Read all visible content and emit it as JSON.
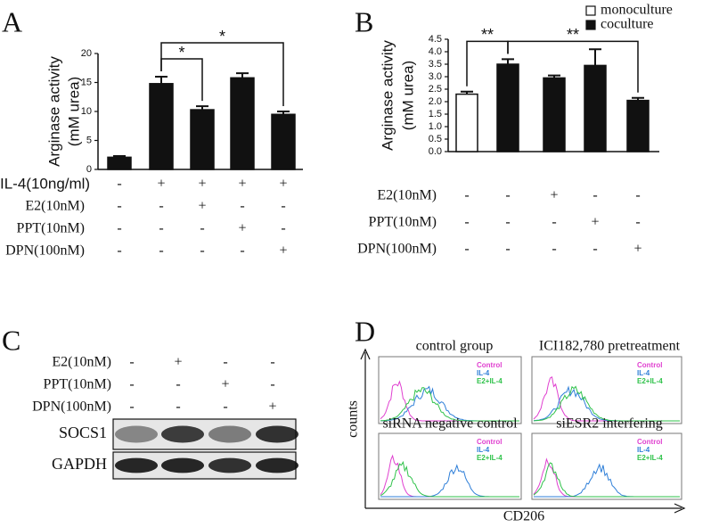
{
  "chart_data": [
    {
      "type": "bar",
      "panel_label": "A",
      "ylabel": [
        "Arginase activity",
        "(mM urea)"
      ],
      "values": [
        2.1,
        14.8,
        10.3,
        15.8,
        9.5
      ],
      "errors": [
        0.2,
        1.2,
        0.6,
        0.8,
        0.5
      ],
      "colors": [
        "#111111",
        "#111111",
        "#111111",
        "#111111",
        "#111111"
      ],
      "ylim": [
        0,
        20
      ],
      "yticks": [
        0,
        5,
        10,
        15,
        20
      ],
      "conditions": [
        {
          "name": "IL-4(10ng/ml)",
          "marks": [
            "-",
            "+",
            "+",
            "+",
            "+"
          ]
        },
        {
          "name": "E2(10nM)",
          "marks": [
            "-",
            "-",
            "+",
            "-",
            "-"
          ]
        },
        {
          "name": "PPT(10nM)",
          "marks": [
            "-",
            "-",
            "-",
            "+",
            "-"
          ]
        },
        {
          "name": "DPN(100nM)",
          "marks": [
            "-",
            "-",
            "-",
            "-",
            "+"
          ]
        }
      ],
      "annotations": [
        {
          "text": "*",
          "between": [
            1,
            2
          ]
        },
        {
          "text": "*",
          "between": [
            1,
            4
          ]
        }
      ]
    },
    {
      "type": "bar",
      "panel_label": "B",
      "ylabel": [
        "Arginase activity",
        "(mM urea)"
      ],
      "values": [
        2.3,
        3.5,
        2.95,
        3.45,
        2.05
      ],
      "errors": [
        0.1,
        0.2,
        0.1,
        0.65,
        0.1
      ],
      "colors": [
        "#ffffff",
        "#111111",
        "#111111",
        "#111111",
        "#111111"
      ],
      "legend": [
        {
          "name": "monoculture",
          "color": "#ffffff"
        },
        {
          "name": "coculture",
          "color": "#111111"
        }
      ],
      "ylim": [
        0,
        4.5
      ],
      "yticks": [
        {
          "value": 0,
          "label": "0.0"
        },
        {
          "value": 0.5,
          "label": "0.5"
        },
        {
          "value": 1,
          "label": "1.0"
        },
        {
          "value": 1.5,
          "label": "1.5"
        },
        {
          "value": 2,
          "label": "2.0"
        },
        {
          "value": 2.5,
          "label": "2.5"
        },
        {
          "value": 3,
          "label": "3.0"
        },
        {
          "value": 3.5,
          "label": "3.5"
        },
        {
          "value": 4,
          "label": "4.0"
        },
        {
          "value": 4.5,
          "label": "4.5"
        }
      ],
      "conditions": [
        {
          "name": "E2(10nM)",
          "marks": [
            "-",
            "-",
            "+",
            "-",
            "-"
          ]
        },
        {
          "name": "PPT(10nM)",
          "marks": [
            "-",
            "-",
            "-",
            "+",
            "-"
          ]
        },
        {
          "name": "DPN(100nM)",
          "marks": [
            "-",
            "-",
            "-",
            "-",
            "+"
          ]
        }
      ],
      "annotations": [
        {
          "text": "**",
          "between": [
            0,
            1
          ]
        },
        {
          "text": "**",
          "between": [
            1,
            4
          ]
        }
      ]
    }
  ],
  "blot": {
    "panel_label": "C",
    "conditions": [
      {
        "name": "E2(10nM)",
        "marks": [
          "-",
          "+",
          "-",
          "-"
        ]
      },
      {
        "name": "PPT(10nM)",
        "marks": [
          "-",
          "-",
          "+",
          "-"
        ]
      },
      {
        "name": "DPN(100nM)",
        "marks": [
          "-",
          "-",
          "-",
          "+"
        ]
      }
    ],
    "bands": [
      "SOCS1",
      "GAPDH"
    ]
  },
  "flow": {
    "panel_label": "D",
    "ylabel": "counts",
    "xlabel": "CD206",
    "panels": [
      "control group",
      "ICI182,780 pretreatment",
      "siRNA negative control",
      "siESR2 interfering"
    ],
    "legend": [
      {
        "name": "Control",
        "color": "#e040d0"
      },
      {
        "name": "IL-4",
        "color": "#2f7fd8"
      },
      {
        "name": "E2+IL-4",
        "color": "#2fc24a"
      }
    ]
  }
}
